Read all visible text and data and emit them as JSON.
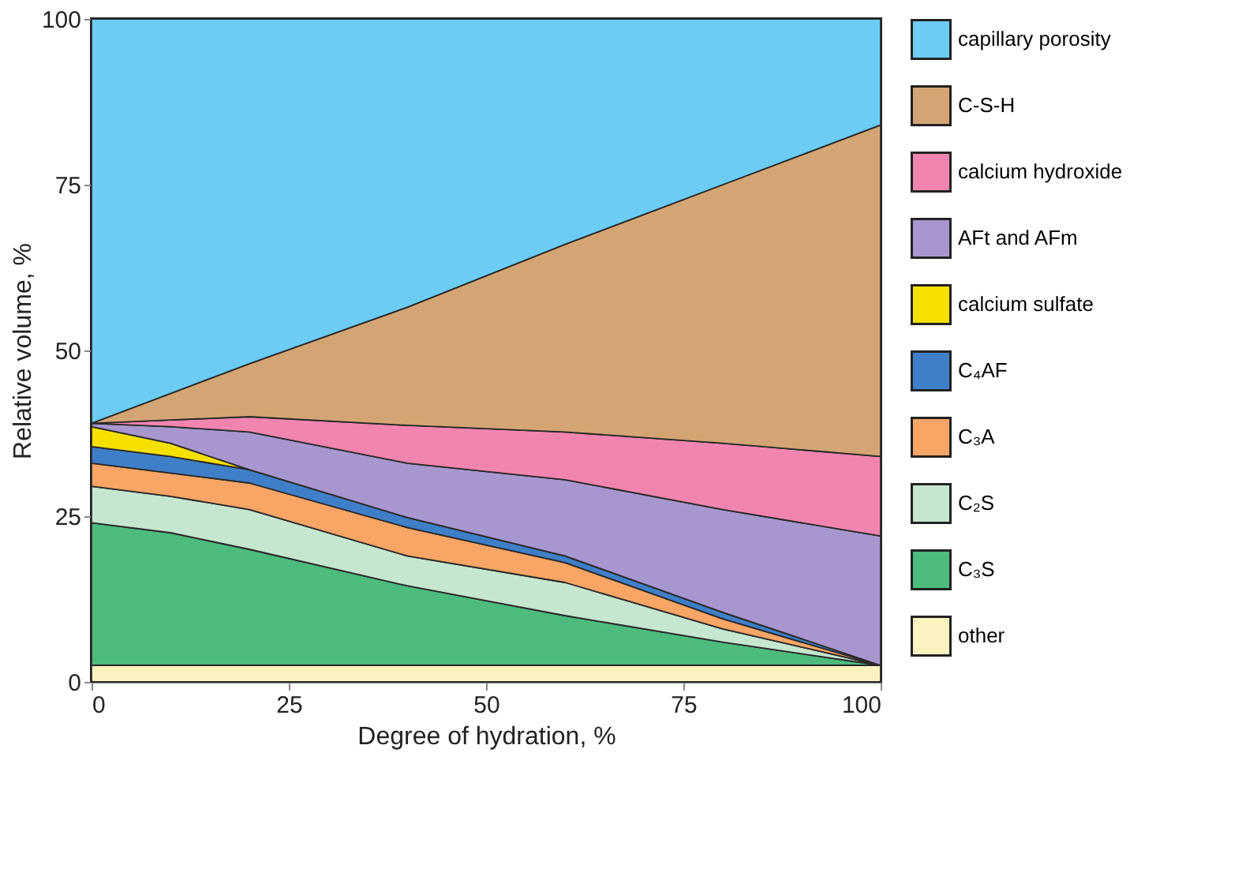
{
  "chart_data": {
    "type": "area",
    "stacked": true,
    "xlabel": "Degree of hydration, %",
    "ylabel": "Relative volume, %",
    "x": [
      0,
      10,
      20,
      40,
      60,
      80,
      100
    ],
    "xlim": [
      0,
      100
    ],
    "xticks": [
      0,
      25,
      50,
      75,
      100
    ],
    "ylim": [
      0,
      100
    ],
    "yticks": [
      0,
      25,
      50,
      75,
      100
    ],
    "grid": false,
    "legend": "right",
    "series": [
      {
        "name": "other",
        "color": "#faf2c0",
        "values": [
          2.5,
          2.5,
          2.5,
          2.5,
          2.5,
          2.5,
          2.5
        ]
      },
      {
        "name": "C₃S",
        "color": "#4dbb7e",
        "values": [
          21.5,
          20,
          17.5,
          12,
          7.5,
          3.5,
          0
        ]
      },
      {
        "name": "C₂S",
        "color": "#c5e6cf",
        "values": [
          5.5,
          5.5,
          6,
          4.5,
          5,
          2,
          0
        ]
      },
      {
        "name": "C₃A",
        "color": "#f8a566",
        "values": [
          3.5,
          3.5,
          4,
          4.3,
          3,
          1.5,
          0
        ]
      },
      {
        "name": "C₄AF",
        "color": "#3f7fc8",
        "values": [
          2.5,
          2.5,
          2,
          1.5,
          1,
          1,
          0
        ]
      },
      {
        "name": "calcium sulfate",
        "color": "#f5e000",
        "values": [
          3,
          2,
          0,
          0,
          0,
          0,
          0
        ]
      },
      {
        "name": "AFt and AFm",
        "color": "#a896cf",
        "values": [
          0.5,
          2.5,
          5.7,
          8.2,
          11.5,
          15.5,
          19.5
        ]
      },
      {
        "name": "calcium hydroxide",
        "color": "#f285b0",
        "values": [
          0,
          1,
          2.3,
          5.7,
          7.2,
          10,
          12
        ]
      },
      {
        "name": "C-S-H",
        "color": "#d4a574",
        "values": [
          0,
          4,
          8,
          17.8,
          28.3,
          39,
          50
        ]
      },
      {
        "name": "capillary porosity",
        "color": "#6cccf4",
        "values": [
          61,
          56.5,
          52,
          43.5,
          34,
          25,
          16
        ]
      }
    ]
  }
}
